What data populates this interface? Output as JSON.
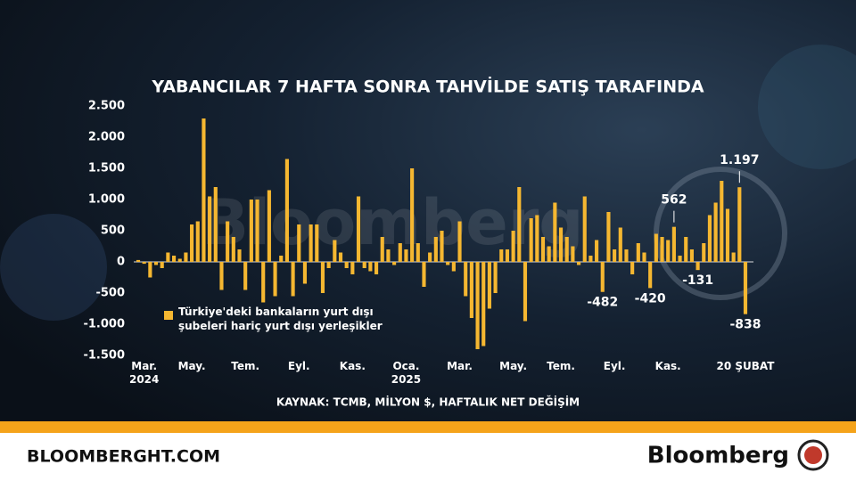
{
  "chart_data": {
    "type": "bar",
    "title": "YABANCILAR 7 HAFTA SONRA TAHVİLDE SATIŞ TARAFINDA",
    "watermark": "Bloomberg",
    "source": "KAYNAK: TCMB, MİLYON $, HAFTALIK NET DEĞİŞİM",
    "categories": [
      null,
      "Mar.\n2024",
      null,
      null,
      null,
      null,
      null,
      null,
      null,
      "May.",
      null,
      null,
      null,
      null,
      null,
      null,
      null,
      null,
      "Tem.",
      null,
      null,
      null,
      null,
      null,
      null,
      null,
      null,
      "Eyl.",
      null,
      null,
      null,
      null,
      null,
      null,
      null,
      null,
      "Kas.",
      null,
      null,
      null,
      null,
      null,
      null,
      null,
      null,
      "Oca.\n2025",
      null,
      null,
      null,
      null,
      null,
      null,
      null,
      null,
      "Mar.",
      null,
      null,
      null,
      null,
      null,
      null,
      null,
      null,
      "May.",
      null,
      null,
      null,
      null,
      null,
      null,
      null,
      "Tem.",
      null,
      null,
      null,
      null,
      null,
      null,
      null,
      null,
      "Eyl.",
      null,
      null,
      null,
      null,
      null,
      null,
      null,
      null,
      "Kas.",
      null,
      null,
      null,
      null,
      null,
      null,
      null,
      null,
      null,
      null,
      null,
      null,
      "20 ŞUBAT"
    ],
    "series": [
      {
        "name": "Türkiye'deki bankaların yurt dışı şubeleri hariç yurt dışı yerleşikler",
        "color": "#f5b731",
        "values": [
          30,
          -30,
          -250,
          -50,
          -100,
          150,
          100,
          50,
          150,
          600,
          650,
          2300,
          1050,
          1200,
          -450,
          650,
          400,
          200,
          -450,
          1000,
          1000,
          -650,
          1150,
          -550,
          100,
          1650,
          -550,
          600,
          -350,
          600,
          600,
          -500,
          -100,
          350,
          150,
          -100,
          -200,
          1050,
          -100,
          -150,
          -200,
          400,
          200,
          -50,
          300,
          200,
          1500,
          300,
          -400,
          150,
          400,
          500,
          -50,
          -150,
          650,
          -550,
          -900,
          -1400,
          -1350,
          -750,
          -500,
          200,
          200,
          500,
          1200,
          -950,
          700,
          750,
          400,
          250,
          950,
          550,
          400,
          250,
          -50,
          1050,
          100,
          350,
          -482,
          800,
          200,
          550,
          200,
          -200,
          300,
          150,
          -420,
          450,
          400,
          350,
          562,
          100,
          400,
          200,
          -131,
          300,
          750,
          950,
          1300,
          850,
          150,
          1197,
          -838
        ],
        "value_labels": [
          null,
          null,
          null,
          null,
          null,
          null,
          null,
          null,
          null,
          null,
          null,
          null,
          null,
          null,
          null,
          null,
          null,
          null,
          null,
          null,
          null,
          null,
          null,
          null,
          null,
          null,
          null,
          null,
          null,
          null,
          null,
          null,
          null,
          null,
          null,
          null,
          null,
          null,
          null,
          null,
          null,
          null,
          null,
          null,
          null,
          null,
          null,
          null,
          null,
          null,
          null,
          null,
          null,
          null,
          null,
          null,
          null,
          null,
          null,
          null,
          null,
          null,
          null,
          null,
          null,
          null,
          null,
          null,
          null,
          null,
          null,
          null,
          null,
          null,
          null,
          null,
          null,
          null,
          "-482",
          null,
          null,
          null,
          null,
          null,
          null,
          null,
          "-420",
          null,
          null,
          null,
          "562",
          null,
          null,
          null,
          "-131",
          null,
          null,
          null,
          null,
          null,
          null,
          "1.197",
          "-838"
        ]
      }
    ],
    "ylim": [
      -1500,
      2500
    ],
    "yticks": [
      {
        "value": 2500,
        "label": "2.500"
      },
      {
        "value": 2000,
        "label": "2.000"
      },
      {
        "value": 1500,
        "label": "1.500"
      },
      {
        "value": 1000,
        "label": "1.000"
      },
      500,
      0,
      -500,
      {
        "value": -1000,
        "label": "-1.000"
      },
      {
        "value": -1500,
        "label": "-1.500"
      }
    ],
    "grid": false
  },
  "footer": {
    "site": "BLOOMBERGHT.COM",
    "brand": "Bloomberg"
  }
}
